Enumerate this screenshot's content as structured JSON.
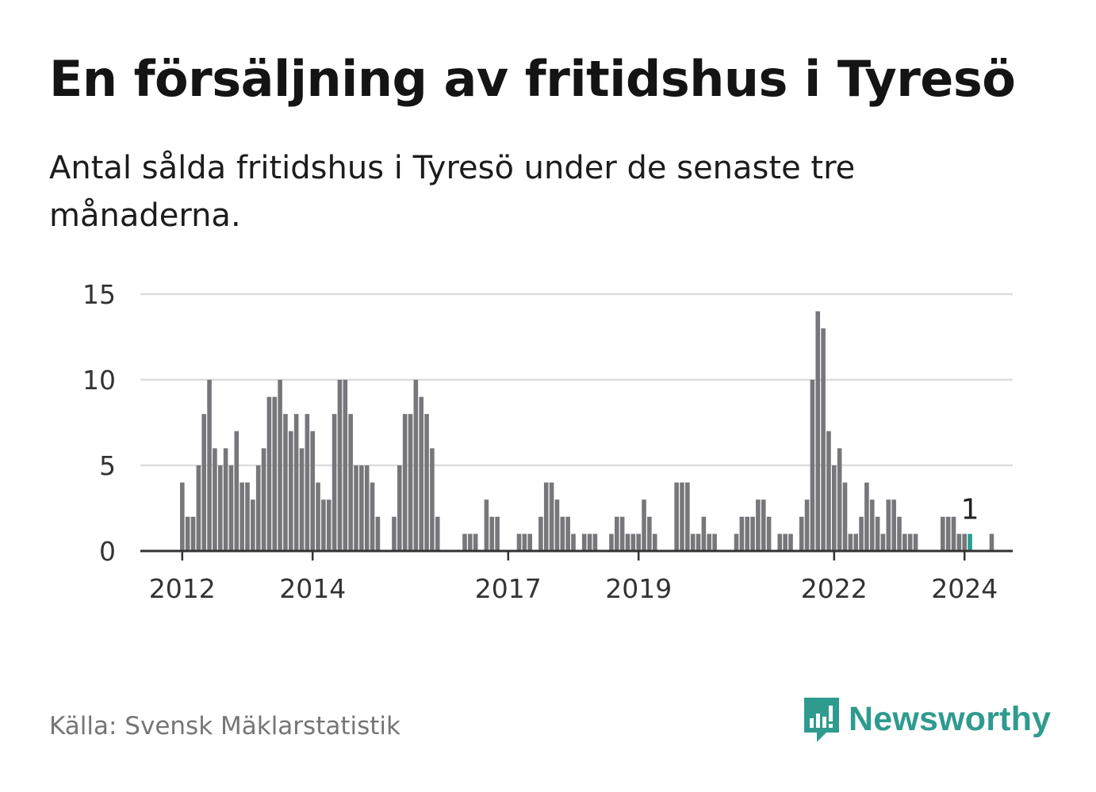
{
  "title": "En försäljning av fritidshus i Tyresö",
  "subtitle": "Antal sålda fritidshus i Tyresö under de senaste tre månaderna.",
  "source": "Källa: Svensk Mäklarstatistik",
  "brand": {
    "name": "Newsworthy",
    "icon": "newsworthy-logo-icon",
    "color": "#2f9b8f"
  },
  "colors": {
    "bar": "#77767b",
    "highlight": "#2a9d8f",
    "grid": "#dddddd",
    "axis": "#333333"
  },
  "chart_data": {
    "type": "bar",
    "title": "",
    "xlabel": "",
    "ylabel": "",
    "ylim": [
      0,
      15
    ],
    "yticks": [
      0,
      5,
      10,
      15
    ],
    "xticks": [
      {
        "label": "2012",
        "index": 0
      },
      {
        "label": "2014",
        "index": 24
      },
      {
        "label": "2017",
        "index": 60
      },
      {
        "label": "2019",
        "index": 84
      },
      {
        "label": "2022",
        "index": 120
      },
      {
        "label": "2024",
        "index": 144
      }
    ],
    "grid": true,
    "legend": "none",
    "highlight": {
      "index": 145,
      "label": "1"
    },
    "values": [
      4,
      2,
      2,
      5,
      8,
      10,
      6,
      5,
      6,
      5,
      7,
      4,
      4,
      3,
      5,
      6,
      9,
      9,
      10,
      8,
      7,
      8,
      6,
      8,
      7,
      4,
      3,
      3,
      8,
      10,
      10,
      8,
      5,
      5,
      5,
      4,
      2,
      0,
      0,
      2,
      5,
      8,
      8,
      10,
      9,
      8,
      6,
      2,
      0,
      0,
      0,
      0,
      1,
      1,
      1,
      0,
      3,
      2,
      2,
      0,
      0,
      0,
      1,
      1,
      1,
      0,
      2,
      4,
      4,
      3,
      2,
      2,
      1,
      0,
      1,
      1,
      1,
      0,
      0,
      1,
      2,
      2,
      1,
      1,
      1,
      3,
      2,
      1,
      0,
      0,
      0,
      4,
      4,
      4,
      1,
      1,
      2,
      1,
      1,
      0,
      0,
      0,
      1,
      2,
      2,
      2,
      3,
      3,
      2,
      0,
      1,
      1,
      1,
      0,
      2,
      3,
      10,
      14,
      13,
      7,
      5,
      6,
      4,
      1,
      1,
      2,
      4,
      3,
      2,
      1,
      3,
      3,
      2,
      1,
      1,
      1,
      0,
      0,
      0,
      0,
      2,
      2,
      2,
      1,
      1,
      1,
      0,
      0,
      0,
      1
    ]
  }
}
